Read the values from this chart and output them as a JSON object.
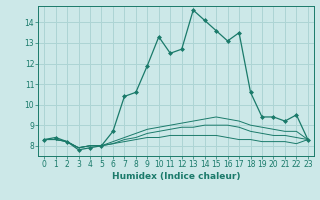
{
  "xlabel": "Humidex (Indice chaleur)",
  "bg_color": "#cce8e8",
  "grid_color": "#add4d4",
  "line_color": "#1a7a6a",
  "xlim": [
    -0.5,
    23.5
  ],
  "ylim": [
    7.5,
    14.8
  ],
  "yticks": [
    8,
    9,
    10,
    11,
    12,
    13,
    14
  ],
  "xticks": [
    0,
    1,
    2,
    3,
    4,
    5,
    6,
    7,
    8,
    9,
    10,
    11,
    12,
    13,
    14,
    15,
    16,
    17,
    18,
    19,
    20,
    21,
    22,
    23
  ],
  "line1_x": [
    0,
    1,
    2,
    3,
    4,
    5,
    6,
    7,
    8,
    9,
    10,
    11,
    12,
    13,
    14,
    15,
    16,
    17,
    18,
    19,
    20,
    21,
    22,
    23
  ],
  "line1_y": [
    8.3,
    8.4,
    8.2,
    7.8,
    7.9,
    8.0,
    8.7,
    10.4,
    10.6,
    11.9,
    13.3,
    12.5,
    12.7,
    14.6,
    14.1,
    13.6,
    13.1,
    13.5,
    10.6,
    9.4,
    9.4,
    9.2,
    9.5,
    8.3
  ],
  "line2_x": [
    0,
    1,
    2,
    3,
    4,
    5,
    6,
    7,
    8,
    9,
    10,
    11,
    12,
    13,
    14,
    15,
    16,
    17,
    18,
    19,
    20,
    21,
    22,
    23
  ],
  "line2_y": [
    8.3,
    8.3,
    8.2,
    7.9,
    8.0,
    8.0,
    8.2,
    8.4,
    8.6,
    8.8,
    8.9,
    9.0,
    9.1,
    9.2,
    9.3,
    9.4,
    9.3,
    9.2,
    9.0,
    8.9,
    8.8,
    8.7,
    8.7,
    8.3
  ],
  "line3_x": [
    0,
    1,
    2,
    3,
    4,
    5,
    6,
    7,
    8,
    9,
    10,
    11,
    12,
    13,
    14,
    15,
    16,
    17,
    18,
    19,
    20,
    21,
    22,
    23
  ],
  "line3_y": [
    8.3,
    8.3,
    8.2,
    7.9,
    8.0,
    8.0,
    8.1,
    8.3,
    8.4,
    8.6,
    8.7,
    8.8,
    8.9,
    8.9,
    9.0,
    9.0,
    9.0,
    8.9,
    8.7,
    8.6,
    8.5,
    8.5,
    8.4,
    8.3
  ],
  "line4_x": [
    0,
    1,
    2,
    3,
    4,
    5,
    6,
    7,
    8,
    9,
    10,
    11,
    12,
    13,
    14,
    15,
    16,
    17,
    18,
    19,
    20,
    21,
    22,
    23
  ],
  "line4_y": [
    8.3,
    8.3,
    8.2,
    7.9,
    8.0,
    8.0,
    8.1,
    8.2,
    8.3,
    8.4,
    8.4,
    8.5,
    8.5,
    8.5,
    8.5,
    8.5,
    8.4,
    8.3,
    8.3,
    8.2,
    8.2,
    8.2,
    8.1,
    8.3
  ]
}
